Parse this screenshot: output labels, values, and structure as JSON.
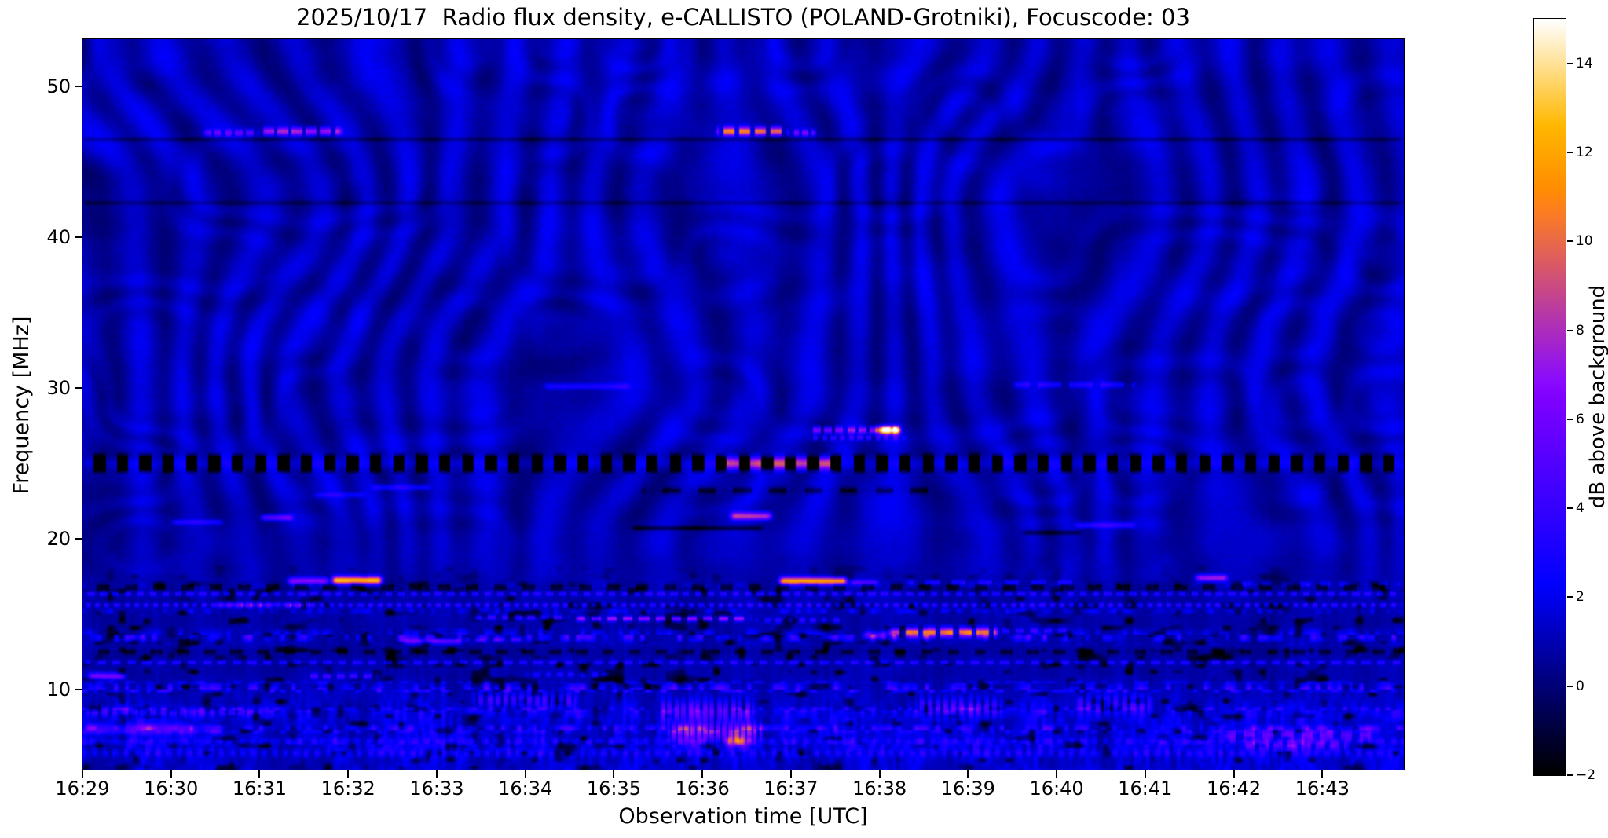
{
  "chart_data": {
    "type": "heatmap",
    "title": "2025/10/17  Radio flux density, e-CALLISTO (POLAND-Grotniki), Focuscode: 03",
    "xlabel": "Observation time [UTC]",
    "ylabel": "Frequency [MHz]",
    "x_ticks": [
      "16:29",
      "16:30",
      "16:31",
      "16:32",
      "16:33",
      "16:34",
      "16:35",
      "16:36",
      "16:37",
      "16:38",
      "16:39",
      "16:40",
      "16:41",
      "16:42",
      "16:43"
    ],
    "x_tick_minutes": [
      0,
      1,
      2,
      3,
      4,
      5,
      6,
      7,
      8,
      9,
      10,
      11,
      12,
      13,
      14
    ],
    "x_span_minutes": 14.92,
    "y_ticks_mhz": [
      10,
      20,
      30,
      40,
      50
    ],
    "freq_range_mhz": [
      4.7,
      53.1
    ],
    "value_range_db": [
      -2,
      15
    ],
    "grid": false,
    "legend": "none",
    "colormap": "gnuplot2-style: black - blue - violet - magenta - orange - yellow - white",
    "colorbar": {
      "label": "dB above background",
      "ticks_db": [
        -2,
        0,
        2,
        4,
        6,
        8,
        10,
        12,
        14
      ]
    },
    "background_character": "dark blue with fine wavy interference ripples above ~18 MHz; dense horizontal RFI rows and vertical striping below ~18 MHz",
    "rfi_dark_lines_mhz": [
      46.45,
      42.25
    ],
    "features": [
      {
        "t0": 1.35,
        "t1": 2.0,
        "f": 46.9,
        "sig": 0.16,
        "amp": 4,
        "dash": 0.12,
        "duty": 0.65
      },
      {
        "t0": 2.0,
        "t1": 2.95,
        "f": 47.0,
        "sig": 0.18,
        "amp": 6.5,
        "dash": 0.16,
        "duty": 0.7
      },
      {
        "t0": 7.15,
        "t1": 7.95,
        "f": 47.0,
        "sig": 0.2,
        "amp": 9.5,
        "dash": 0.18,
        "duty": 0.7
      },
      {
        "t0": 7.95,
        "t1": 8.3,
        "f": 46.9,
        "sig": 0.15,
        "amp": 5,
        "dash": 0.1,
        "duty": 0.6
      },
      {
        "t0": 0,
        "t1": 14.92,
        "f": 46.45,
        "sig": 0.1,
        "amp": -1.3
      },
      {
        "t0": 0,
        "t1": 14.92,
        "f": 42.25,
        "sig": 0.1,
        "amp": -1.1
      },
      {
        "t0": 5.2,
        "t1": 6.2,
        "f": 30.1,
        "sig": 0.13,
        "amp": 2.3
      },
      {
        "t0": 10.5,
        "t1": 11.9,
        "f": 30.2,
        "sig": 0.13,
        "amp": 2.4,
        "dash": 0.35,
        "duty": 0.75
      },
      {
        "t0": 8.2,
        "t1": 9.25,
        "f": 27.2,
        "sig": 0.15,
        "amp": 6,
        "dash": 0.13,
        "duty": 0.7
      },
      {
        "t0": 8.95,
        "t1": 9.25,
        "f": 27.2,
        "sig": 0.18,
        "amp": 13
      },
      {
        "t0": 8.2,
        "t1": 9.3,
        "f": 26.7,
        "sig": 0.13,
        "amp": 3,
        "dash": 0.1,
        "duty": 0.55
      },
      {
        "t0": 0,
        "t1": 14.92,
        "f": 25.0,
        "sig": 0.28,
        "amp": 2.2
      },
      {
        "t0": 7.2,
        "t1": 8.5,
        "f": 25.0,
        "sig": 0.28,
        "amp": 7
      },
      {
        "t0": 0,
        "t1": 14.92,
        "f": 25.0,
        "sig": 0.28,
        "amp": -15,
        "dash": 0.26,
        "duty": 0.5
      },
      {
        "t0": 3.25,
        "t1": 3.95,
        "f": 23.4,
        "sig": 0.13,
        "amp": 2.3
      },
      {
        "t0": 2.6,
        "t1": 3.2,
        "f": 22.9,
        "sig": 0.11,
        "amp": 1.8
      },
      {
        "t0": 6.3,
        "t1": 9.6,
        "f": 23.2,
        "sig": 0.15,
        "amp": -2.2,
        "dash": 0.4,
        "duty": 0.5
      },
      {
        "t0": 2.0,
        "t1": 2.4,
        "f": 21.4,
        "sig": 0.14,
        "amp": 5
      },
      {
        "t0": 1.0,
        "t1": 1.6,
        "f": 21.1,
        "sig": 0.12,
        "amp": 2.5
      },
      {
        "t0": 7.3,
        "t1": 7.8,
        "f": 21.5,
        "sig": 0.18,
        "amp": 7.5
      },
      {
        "t0": 6.2,
        "t1": 7.7,
        "f": 20.7,
        "sig": 0.1,
        "amp": -2.5
      },
      {
        "t0": 10.6,
        "t1": 11.3,
        "f": 20.4,
        "sig": 0.1,
        "amp": -2
      },
      {
        "t0": 11.2,
        "t1": 11.9,
        "f": 20.9,
        "sig": 0.12,
        "amp": 3
      },
      {
        "t0": 2.3,
        "t1": 2.8,
        "f": 17.2,
        "sig": 0.16,
        "amp": 6
      },
      {
        "t0": 2.8,
        "t1": 3.4,
        "f": 17.25,
        "sig": 0.18,
        "amp": 12
      },
      {
        "t0": 7.85,
        "t1": 8.65,
        "f": 17.2,
        "sig": 0.18,
        "amp": 11
      },
      {
        "t0": 8.65,
        "t1": 9.0,
        "f": 17.1,
        "sig": 0.13,
        "amp": 4
      },
      {
        "t0": 9.3,
        "t1": 11.3,
        "f": 17.1,
        "sig": 0.11,
        "amp": 2.6,
        "dash": 0.3,
        "duty": 0.55
      },
      {
        "t0": 12.55,
        "t1": 12.95,
        "f": 17.4,
        "sig": 0.15,
        "amp": 6.5
      },
      {
        "t0": 13.0,
        "t1": 14.9,
        "f": 17.0,
        "sig": 0.11,
        "amp": 2,
        "dash": 0.22,
        "duty": 0.5
      },
      {
        "t0": 0,
        "t1": 14.92,
        "f": 16.35,
        "sig": 0.1,
        "amp": 2.8,
        "dash": 0.14,
        "duty": 0.55
      },
      {
        "t0": 0,
        "t1": 14.92,
        "f": 16.8,
        "sig": 0.17,
        "amp": -2.4,
        "dash": 0.32,
        "duty": 0.45
      },
      {
        "t0": 0,
        "t1": 14.92,
        "f": 15.6,
        "sig": 0.1,
        "amp": 3.2,
        "dash": 0.11,
        "duty": 0.5
      },
      {
        "t0": 1.5,
        "t1": 2.6,
        "f": 15.6,
        "sig": 0.12,
        "amp": 5,
        "dash": 0.11,
        "duty": 0.55
      },
      {
        "t0": 5.55,
        "t1": 7.55,
        "f": 14.7,
        "sig": 0.12,
        "amp": 6.5,
        "dash": 0.18,
        "duty": 0.6
      },
      {
        "t0": 4.4,
        "t1": 5.5,
        "f": 14.8,
        "sig": 0.11,
        "amp": 3.5,
        "dash": 0.15,
        "duty": 0.55
      },
      {
        "t0": 7.6,
        "t1": 8.6,
        "f": 14.6,
        "sig": 0.11,
        "amp": 3,
        "dash": 0.13,
        "duty": 0.5
      },
      {
        "t0": 9.1,
        "t1": 10.35,
        "f": 13.8,
        "sig": 0.22,
        "amp": 9.5,
        "dash": 0.2,
        "duty": 0.7
      },
      {
        "t0": 8.8,
        "t1": 9.1,
        "f": 13.6,
        "sig": 0.14,
        "amp": 4.5
      },
      {
        "t0": 10.35,
        "t1": 11.2,
        "f": 13.9,
        "sig": 0.12,
        "amp": 3,
        "dash": 0.16,
        "duty": 0.5
      },
      {
        "t0": 3.55,
        "t1": 4.3,
        "f": 13.2,
        "sig": 0.13,
        "amp": 4.5
      },
      {
        "t0": 4.3,
        "t1": 5.05,
        "f": 13.3,
        "sig": 0.11,
        "amp": 3,
        "dash": 0.2,
        "duty": 0.6
      },
      {
        "t0": 0,
        "t1": 14.92,
        "f": 12.5,
        "sig": 0.13,
        "amp": -2,
        "dash": 0.3,
        "duty": 0.45
      },
      {
        "t0": 0,
        "t1": 14.92,
        "f": 11.8,
        "sig": 0.1,
        "amp": 2.6,
        "dash": 0.17,
        "duty": 0.55
      },
      {
        "t0": 0.05,
        "t1": 0.5,
        "f": 10.9,
        "sig": 0.15,
        "amp": 5.5
      },
      {
        "t0": 2.5,
        "t1": 3.35,
        "f": 10.9,
        "sig": 0.12,
        "amp": 3.5,
        "dash": 0.15,
        "duty": 0.6
      },
      {
        "t0": 5.0,
        "t1": 6.0,
        "f": 11.0,
        "sig": 0.11,
        "amp": 2.5,
        "dash": 0.13,
        "duty": 0.5
      },
      {
        "t0": 4.4,
        "t1": 5.6,
        "f": 9.3,
        "sig": 0.35,
        "amp": 3,
        "dash": 0.09,
        "duty": 0.6
      },
      {
        "t0": 6.5,
        "t1": 7.6,
        "f": 8.6,
        "sig": 0.5,
        "amp": 4,
        "dash": 0.08,
        "duty": 0.65
      },
      {
        "t0": 9.4,
        "t1": 10.4,
        "f": 8.8,
        "sig": 0.45,
        "amp": 3.5,
        "dash": 0.09,
        "duty": 0.6
      },
      {
        "t0": 11.2,
        "t1": 12.1,
        "f": 9.0,
        "sig": 0.45,
        "amp": 3,
        "dash": 0.1,
        "duty": 0.6
      },
      {
        "t0": 0,
        "t1": 1.6,
        "f": 7.4,
        "sig": 0.28,
        "amp": 3.2
      },
      {
        "t0": 0,
        "t1": 2.1,
        "f": 8.5,
        "sig": 0.22,
        "amp": 2.5,
        "dash": 0.11,
        "duty": 0.6
      },
      {
        "t0": 6.6,
        "t1": 7.7,
        "f": 7.2,
        "sig": 0.45,
        "amp": 5,
        "dash": 0.07,
        "duty": 0.7
      },
      {
        "t0": 7.25,
        "t1": 7.5,
        "f": 6.6,
        "sig": 0.28,
        "amp": 6
      },
      {
        "t0": 12.9,
        "t1": 14.6,
        "f": 7.0,
        "sig": 0.28,
        "amp": 4,
        "dash": 0.22,
        "duty": 0.6
      },
      {
        "t0": 13.1,
        "t1": 14.3,
        "f": 6.3,
        "sig": 0.22,
        "amp": 3.5,
        "dash": 0.16,
        "duty": 0.6
      },
      {
        "t0": 0,
        "t1": 14.92,
        "f": 5.8,
        "sig": 0.18,
        "amp": 1.6,
        "dash": 0.12,
        "duty": 0.5
      },
      {
        "t0": 0,
        "t1": 14.92,
        "f": 6.6,
        "sig": 0.13,
        "amp": 1.3,
        "dash": 0.13,
        "duty": 0.5
      }
    ]
  }
}
